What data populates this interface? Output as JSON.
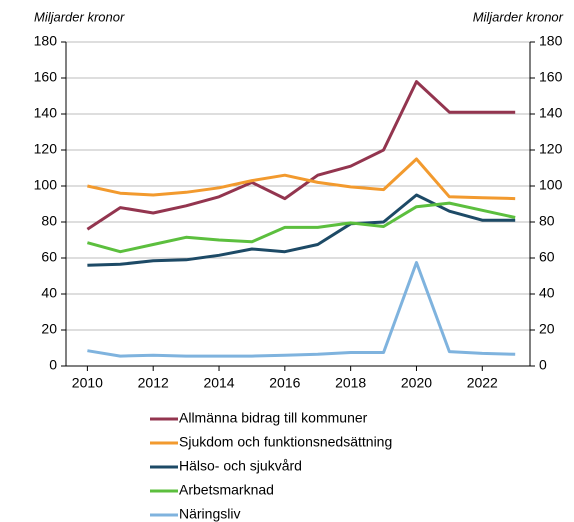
{
  "chart_data": {
    "type": "line",
    "y_label": "Miljarder kronor",
    "y2_label": "Miljarder kronor",
    "x": [
      2010,
      2011,
      2012,
      2013,
      2014,
      2015,
      2016,
      2017,
      2018,
      2019,
      2020,
      2021,
      2022,
      2023
    ],
    "xlim": [
      2009.35,
      2023.45
    ],
    "xticks": [
      2010,
      2012,
      2014,
      2016,
      2018,
      2020,
      2022
    ],
    "ylim": [
      0,
      180
    ],
    "yticks": [
      0,
      20,
      40,
      60,
      80,
      100,
      120,
      140,
      160,
      180
    ],
    "y2lim": [
      0,
      180
    ],
    "y2ticks": [
      0,
      20,
      40,
      60,
      80,
      100,
      120,
      140,
      160,
      180
    ],
    "grid": true,
    "series": [
      {
        "name": "Allmänna bidrag till kommuner",
        "color": "#93354f",
        "values": [
          76,
          88,
          85,
          89,
          94,
          102,
          93,
          106,
          111,
          120,
          158,
          141,
          141,
          141
        ]
      },
      {
        "name": "Sjukdom och funktionsnedsättning",
        "color": "#f29a2e",
        "values": [
          100,
          96,
          95,
          96.5,
          99,
          103,
          106,
          102,
          99.5,
          98,
          115,
          94,
          93.5,
          93
        ]
      },
      {
        "name": "Hälso- och sjukvård",
        "color": "#1d4a66",
        "values": [
          56,
          56.5,
          58.5,
          59,
          61.5,
          65,
          63.5,
          67.5,
          79,
          80,
          95,
          86,
          81,
          81
        ]
      },
      {
        "name": "Arbetsmarknad",
        "color": "#5cbf3e",
        "values": [
          68.5,
          63.5,
          67.5,
          71.5,
          70,
          69,
          77,
          77,
          79.5,
          77.5,
          88.5,
          90.5,
          86.5,
          82.5
        ]
      },
      {
        "name": "Näringsliv",
        "color": "#7fb3de",
        "values": [
          8.5,
          5.5,
          6,
          5.5,
          5.5,
          5.5,
          6,
          6.5,
          7.5,
          7.5,
          57.5,
          8,
          7,
          6.5
        ]
      }
    ]
  }
}
